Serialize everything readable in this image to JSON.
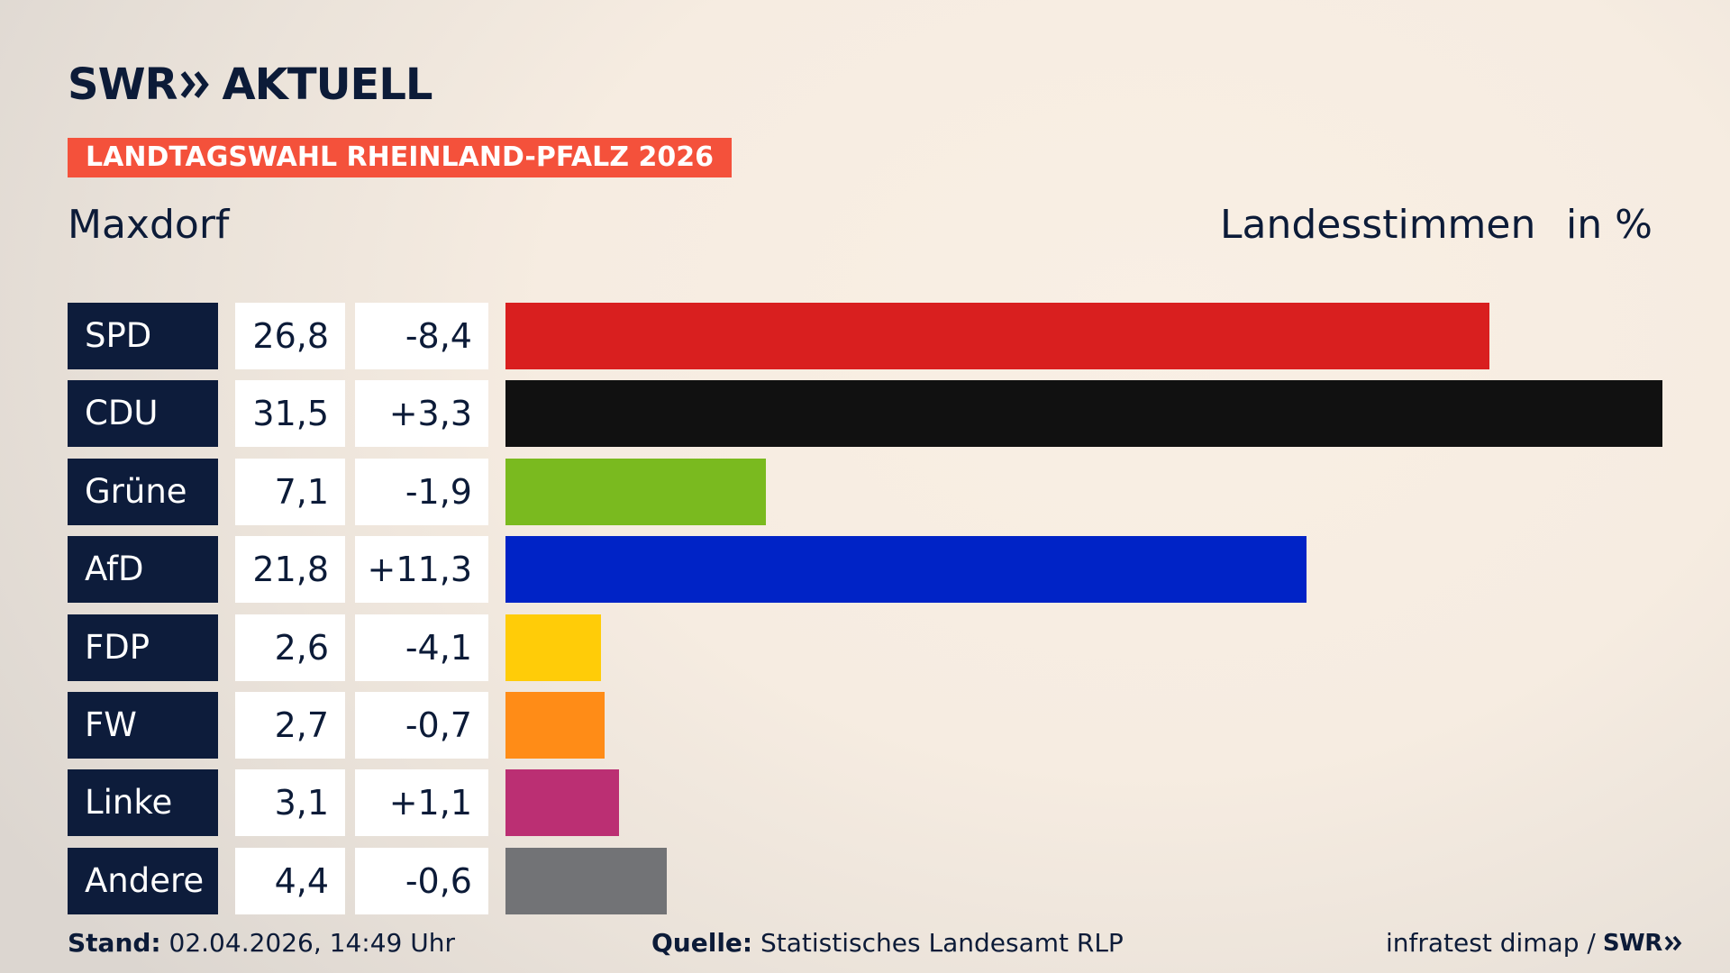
{
  "header": {
    "brand_left": "SWR",
    "brand_right": "AKTUELL",
    "topic": "LANDTAGSWAHL RHEINLAND-PFALZ 2026",
    "region": "Maxdorf",
    "measure": "Landesstimmen",
    "unit": "in %"
  },
  "footer": {
    "stand_label": "Stand:",
    "stand_value": "02.04.2026, 14:49 Uhr",
    "source_label": "Quelle:",
    "source_value": "Statistisches Landesamt RLP",
    "credit": "infratest dimap /",
    "credit_logo": "SWR"
  },
  "chart_data": {
    "type": "bar",
    "orientation": "horizontal",
    "categories": [
      "SPD",
      "CDU",
      "Grüne",
      "AfD",
      "FDP",
      "FW",
      "Linke",
      "Andere"
    ],
    "values": [
      26.8,
      31.5,
      7.1,
      21.8,
      2.6,
      2.7,
      3.1,
      4.4
    ],
    "value_labels": [
      "26,8",
      "31,5",
      "7,1",
      "21,8",
      "2,6",
      "2,7",
      "3,1",
      "4,4"
    ],
    "change_labels": [
      "-8,4",
      "+3,3",
      "-1,9",
      "+11,3",
      "-4,1",
      "-0,7",
      "+1,1",
      "-0,6"
    ],
    "changes": [
      -8.4,
      3.3,
      -1.9,
      11.3,
      -4.1,
      -0.7,
      1.1,
      -0.6
    ],
    "colors": [
      "#d91f1f",
      "#111111",
      "#7aba1f",
      "#0023c6",
      "#ffcc08",
      "#ff8c17",
      "#bb2f73",
      "#727376"
    ],
    "xlim": [
      0,
      31.5
    ],
    "grid": false
  }
}
